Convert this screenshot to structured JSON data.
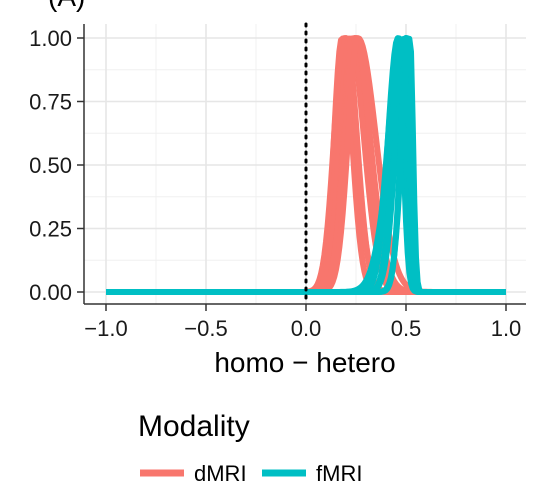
{
  "chart_data": {
    "type": "line",
    "title": "",
    "panel_label": "(A)",
    "xlabel": "homo − hetero",
    "ylabel": "",
    "xlim": [
      -1.0,
      1.0
    ],
    "ylim": [
      0.0,
      1.0
    ],
    "x_ticks": [
      -1.0,
      -0.5,
      0.0,
      0.5,
      1.0
    ],
    "x_tick_labels": [
      "−1.0",
      "−0.5",
      "0.0",
      "0.5",
      "1.0"
    ],
    "y_ticks": [
      0.0,
      0.25,
      0.5,
      0.75,
      1.0
    ],
    "y_tick_labels": [
      "0.00",
      "0.25",
      "0.50",
      "0.75",
      "1.00"
    ],
    "grid": true,
    "reference_line": {
      "x": 0.0,
      "style": "dotted",
      "color": "#000000"
    },
    "legend": {
      "title": "Modality",
      "position": "bottom",
      "items": [
        {
          "label": "dMRI",
          "color": "#F8766D"
        },
        {
          "label": "fMRI",
          "color": "#00BFC4"
        }
      ]
    },
    "series": [
      {
        "name": "dMRI",
        "color": "#F8766D",
        "curves": [
          {
            "peak": 0.18,
            "sd_left": 0.04,
            "sd_right": 0.05
          },
          {
            "peak": 0.19,
            "sd_left": 0.05,
            "sd_right": 0.06
          },
          {
            "peak": 0.2,
            "sd_left": 0.045,
            "sd_right": 0.055
          },
          {
            "peak": 0.22,
            "sd_left": 0.05,
            "sd_right": 0.07
          },
          {
            "peak": 0.23,
            "sd_left": 0.045,
            "sd_right": 0.065
          },
          {
            "peak": 0.24,
            "sd_left": 0.05,
            "sd_right": 0.08
          },
          {
            "peak": 0.25,
            "sd_left": 0.055,
            "sd_right": 0.07
          },
          {
            "peak": 0.26,
            "sd_left": 0.05,
            "sd_right": 0.09
          }
        ]
      },
      {
        "name": "fMRI",
        "color": "#00BFC4",
        "curves": [
          {
            "peak": 0.46,
            "sd_left": 0.05,
            "sd_right": 0.025
          },
          {
            "peak": 0.47,
            "sd_left": 0.06,
            "sd_right": 0.025
          },
          {
            "peak": 0.48,
            "sd_left": 0.045,
            "sd_right": 0.02
          },
          {
            "peak": 0.49,
            "sd_left": 0.07,
            "sd_right": 0.02
          },
          {
            "peak": 0.5,
            "sd_left": 0.05,
            "sd_right": 0.015
          },
          {
            "peak": 0.5,
            "sd_left": 0.08,
            "sd_right": 0.02
          },
          {
            "peak": 0.51,
            "sd_left": 0.035,
            "sd_right": 0.015
          },
          {
            "peak": 0.52,
            "sd_left": 0.04,
            "sd_right": 0.015
          }
        ]
      }
    ]
  }
}
